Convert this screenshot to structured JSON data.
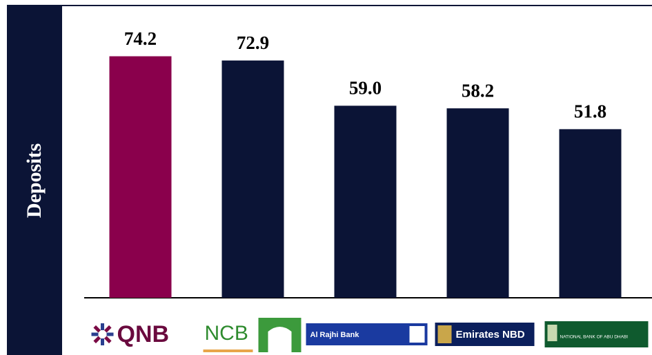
{
  "chart_data": {
    "type": "bar",
    "y_label": "Deposits",
    "categories": [
      "QNB",
      "NCB",
      "Al Rajhi Bank",
      "Emirates NBD",
      "NATIONAL BANK OF ABU DHABI"
    ],
    "values": [
      74.2,
      72.9,
      59.0,
      58.2,
      51.8
    ],
    "value_labels": [
      "74.2",
      "72.9",
      "59.0",
      "58.2",
      "51.8"
    ],
    "colors": [
      "#8a004c",
      "#0b1436",
      "#0b1436",
      "#0b1436",
      "#0b1436"
    ],
    "ylim": [
      0,
      90
    ]
  }
}
